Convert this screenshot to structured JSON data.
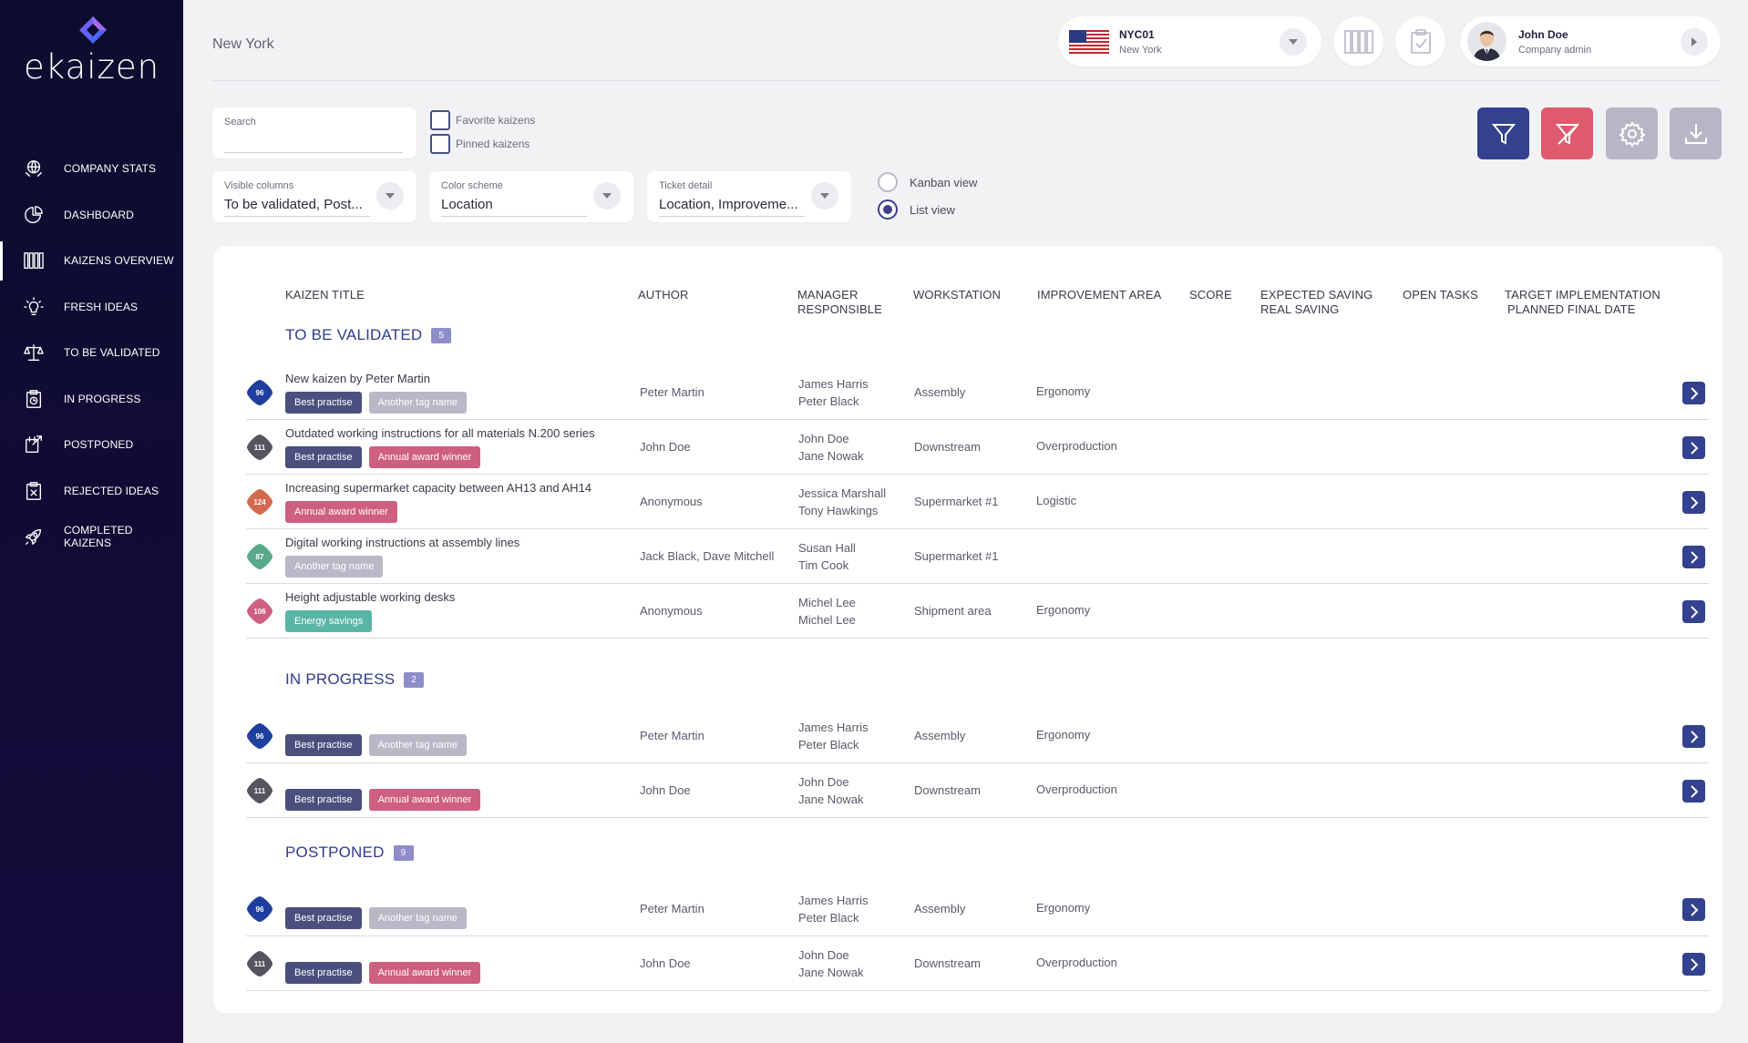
{
  "app": {
    "logo_text": "ekaizen",
    "page_title": "New York"
  },
  "sidebar": {
    "items": [
      {
        "label": "COMPANY STATS",
        "icon": "globe-hands-icon"
      },
      {
        "label": "DASHBOARD",
        "icon": "pie-chart-icon"
      },
      {
        "label": "KAIZENS OVERVIEW",
        "icon": "kanban-columns-icon",
        "active": true
      },
      {
        "label": "FRESH IDEAS",
        "icon": "lightbulb-icon"
      },
      {
        "label": "TO BE VALIDATED",
        "icon": "scales-icon"
      },
      {
        "label": "IN PROGRESS",
        "icon": "clipboard-clock-icon"
      },
      {
        "label": "POSTPONED",
        "icon": "calendar-arrow-icon"
      },
      {
        "label": "REJECTED IDEAS",
        "icon": "clipboard-x-icon"
      },
      {
        "label": "COMPLETED KAIZENS",
        "icon": "rocket-icon"
      }
    ]
  },
  "header": {
    "location": {
      "code": "NYC01",
      "name": "New York",
      "flag": "us-flag-icon"
    },
    "user": {
      "name": "John Doe",
      "role": "Company admin"
    }
  },
  "filters": {
    "search": {
      "label": "Search",
      "value": ""
    },
    "favorite_label": "Favorite kaizens",
    "pinned_label": "Pinned kaizens",
    "visible_columns": {
      "label": "Visible columns",
      "value": "To be validated, Post..."
    },
    "color_scheme": {
      "label": "Color scheme",
      "value": "Location"
    },
    "ticket_detail": {
      "label": "Ticket detail",
      "value": "Location, Improveme..."
    },
    "view_kanban": "Kanban view",
    "view_list": "List view",
    "selected_view": "list"
  },
  "colors": {
    "accent": "#33418f",
    "danger": "#e05a6e",
    "muted": "#b6b6c6",
    "badge_blue": "#1f3f9e",
    "badge_gray": "#55555f",
    "badge_orange": "#d26a4f",
    "badge_green": "#5aa88a",
    "badge_pink": "#cf5f80",
    "tag_best": "#4b4f7e",
    "tag_other": "#b9b8c6",
    "tag_award": "#cf5f80",
    "tag_energy": "#5ab5a6"
  },
  "table": {
    "columns": {
      "title": "KAIZEN TITLE",
      "author": "AUTHOR",
      "manager_1": "MANAGER",
      "manager_2": "RESPONSIBLE",
      "workstation": "WORKSTATION",
      "area": "IMPROVEMENT AREA",
      "score": "SCORE",
      "saving_1": "EXPECTED SAVING",
      "saving_2": "REAL SAVING",
      "tasks": "OPEN TASKS",
      "date_1": "TARGET IMPLEMENTATION",
      "date_2": "PLANNED FINAL DATE"
    },
    "sections": [
      {
        "title": "TO BE VALIDATED",
        "count": "5",
        "rows": [
          {
            "score": "96",
            "badge": "blue",
            "title": "New kaizen by Peter Martin",
            "tags": [
              {
                "label": "Best practise",
                "kind": "best"
              },
              {
                "label": "Another tag name",
                "kind": "other"
              }
            ],
            "author": "Peter Martin",
            "manager": "James Harris",
            "responsible": "Peter Black",
            "workstation": "Assembly",
            "area": "Ergonomy"
          },
          {
            "score": "111",
            "badge": "gray",
            "title": "Outdated working instructions for all materials N.200 series",
            "tags": [
              {
                "label": "Best practise",
                "kind": "best"
              },
              {
                "label": "Annual award winner",
                "kind": "award"
              }
            ],
            "author": "John Doe",
            "manager": "John Doe",
            "responsible": "Jane Nowak",
            "workstation": "Downstream",
            "area": "Overproduction"
          },
          {
            "score": "124",
            "badge": "orange",
            "title": "Increasing supermarket capacity between AH13 and AH14",
            "tags": [
              {
                "label": "Annual award winner",
                "kind": "award"
              }
            ],
            "author": "Anonymous",
            "manager": "Jessica Marshall",
            "responsible": "Tony Hawkings",
            "workstation": "Supermarket #1",
            "area": "Logistic"
          },
          {
            "score": "87",
            "badge": "green",
            "title": "Digital working instructions at assembly lines",
            "tags": [
              {
                "label": "Another tag name",
                "kind": "other"
              }
            ],
            "author": "Jack Black, Dave Mitchell",
            "manager": "Susan Hall",
            "responsible": "Tim Cook",
            "workstation": "Supermarket #1",
            "area": ""
          },
          {
            "score": "106",
            "badge": "pink",
            "title": "Height adjustable working desks",
            "tags": [
              {
                "label": "Energy savings",
                "kind": "energy"
              }
            ],
            "author": "Anonymous",
            "manager": "Michel Lee",
            "responsible": "Michel Lee",
            "workstation": "Shipment area",
            "area": "Ergonomy"
          }
        ]
      },
      {
        "title": "IN PROGRESS",
        "count": "2",
        "rows": [
          {
            "score": "96",
            "badge": "blue",
            "title": "",
            "tags": [
              {
                "label": "Best practise",
                "kind": "best"
              },
              {
                "label": "Another tag name",
                "kind": "other"
              }
            ],
            "author": "Peter Martin",
            "manager": "James Harris",
            "responsible": "Peter Black",
            "workstation": "Assembly",
            "area": "Ergonomy"
          },
          {
            "score": "111",
            "badge": "gray",
            "title": "",
            "tags": [
              {
                "label": "Best practise",
                "kind": "best"
              },
              {
                "label": "Annual award winner",
                "kind": "award"
              }
            ],
            "author": "John Doe",
            "manager": "John Doe",
            "responsible": "Jane Nowak",
            "workstation": "Downstream",
            "area": "Overproduction"
          }
        ]
      },
      {
        "title": "POSTPONED",
        "count": "9",
        "rows": [
          {
            "score": "96",
            "badge": "blue",
            "title": "",
            "tags": [
              {
                "label": "Best practise",
                "kind": "best"
              },
              {
                "label": "Another tag name",
                "kind": "other"
              }
            ],
            "author": "Peter Martin",
            "manager": "James Harris",
            "responsible": "Peter Black",
            "workstation": "Assembly",
            "area": "Ergonomy"
          },
          {
            "score": "111",
            "badge": "gray",
            "title": "",
            "tags": [
              {
                "label": "Best practise",
                "kind": "best"
              },
              {
                "label": "Annual award winner",
                "kind": "award"
              }
            ],
            "author": "John Doe",
            "manager": "John Doe",
            "responsible": "Jane Nowak",
            "workstation": "Downstream",
            "area": "Overproduction"
          }
        ]
      }
    ]
  }
}
